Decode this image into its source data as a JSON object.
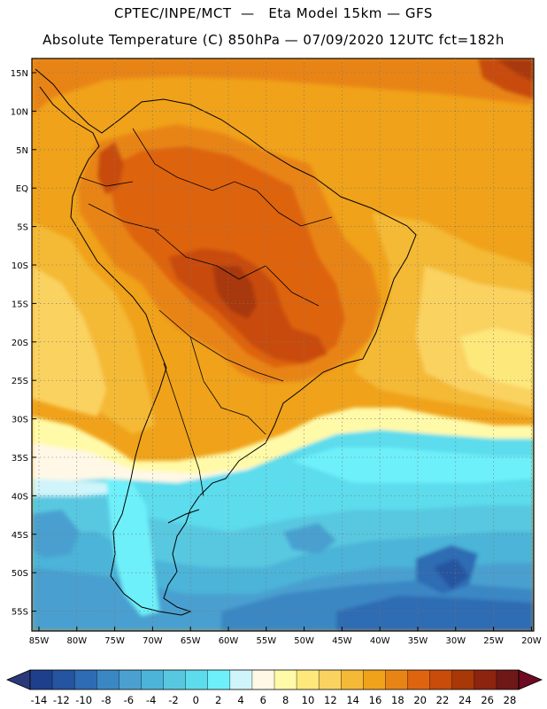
{
  "title_line1": "CPTEC/INPE/MCT  —   Eta Model 15km — GFS",
  "title_line2": "Absolute Temperature (C) 850hPa — 07/09/2020 12UTC fct=182h",
  "lat_labels": [
    "15N",
    "10N",
    "5N",
    "EQ",
    "5S",
    "10S",
    "15S",
    "20S",
    "25S",
    "30S",
    "35S",
    "40S",
    "45S",
    "50S",
    "55S"
  ],
  "lon_labels": [
    "85W",
    "80W",
    "75W",
    "70W",
    "65W",
    "60W",
    "55W",
    "50W",
    "45W",
    "40W",
    "35W",
    "30W",
    "25W",
    "20W"
  ],
  "colorbar": {
    "labels": [
      "-14",
      "-12",
      "-10",
      "-8",
      "-6",
      "-4",
      "-2",
      "0",
      "2",
      "4",
      "6",
      "8",
      "10",
      "12",
      "14",
      "16",
      "18",
      "20",
      "22",
      "24",
      "26",
      "28"
    ],
    "colors": [
      "#1e3f8c",
      "#2554a0",
      "#2e6cb4",
      "#3a87c4",
      "#4aa0d0",
      "#4cb4d8",
      "#58c8e0",
      "#5cdcec",
      "#6ef0fa",
      "#cff4fa",
      "#fff8e6",
      "#fffaa8",
      "#fde87c",
      "#fad260",
      "#f4b936",
      "#f0a21a",
      "#e88416",
      "#de6410",
      "#c84c0a",
      "#a83808",
      "#8c2410",
      "#6e1818"
    ],
    "left_tip_color": "#29397a",
    "right_tip_color": "#6e0a22"
  }
}
